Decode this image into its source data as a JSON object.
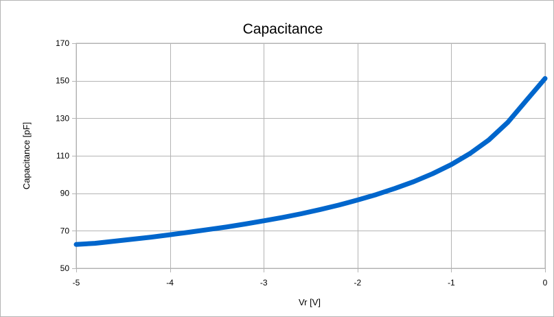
{
  "chart_data": {
    "type": "line",
    "title": "Capacitance",
    "xlabel": "Vr [V]",
    "ylabel": "Capacitance [pF]",
    "xlim": [
      -5,
      0
    ],
    "ylim": [
      50,
      170
    ],
    "xticks": [
      -5,
      -4,
      -3,
      -2,
      -1,
      0
    ],
    "yticks": [
      50,
      70,
      90,
      110,
      130,
      150,
      170
    ],
    "grid": true,
    "legend": "none",
    "series": [
      {
        "color": "#0066cc",
        "x": [
          -5.0,
          -4.8,
          -4.6,
          -4.4,
          -4.2,
          -4.0,
          -3.8,
          -3.6,
          -3.4,
          -3.2,
          -3.0,
          -2.8,
          -2.6,
          -2.4,
          -2.2,
          -2.0,
          -1.8,
          -1.6,
          -1.4,
          -1.2,
          -1.0,
          -0.8,
          -0.6,
          -0.4,
          -0.2,
          0.0
        ],
        "y": [
          62.7,
          63.3,
          64.4,
          65.5,
          66.6,
          67.9,
          69.2,
          70.6,
          72.0,
          73.6,
          75.3,
          77.1,
          79.1,
          81.3,
          83.7,
          86.4,
          89.3,
          92.6,
          96.2,
          100.4,
          105.3,
          111.2,
          118.4,
          127.7,
          139.5,
          151.2
        ]
      }
    ]
  }
}
